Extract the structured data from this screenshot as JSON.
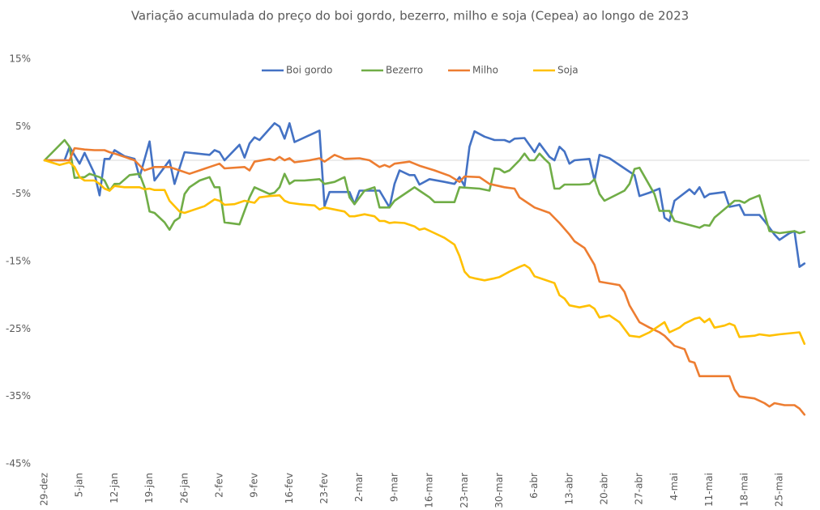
{
  "chart_data": {
    "type": "line",
    "title": "Variação acumulada do preço do boi gordo, bezerro, milho e soja (Cepea) ao longo de 2023",
    "xlim": [
      0,
      153
    ],
    "xticks": [
      {
        "value": 0,
        "label": "29-dez"
      },
      {
        "value": 7,
        "label": "5-jan"
      },
      {
        "value": 14,
        "label": "12-jan"
      },
      {
        "value": 21,
        "label": "19-jan"
      },
      {
        "value": 28,
        "label": "26-jan"
      },
      {
        "value": 35,
        "label": "2-fev"
      },
      {
        "value": 42,
        "label": "9-fev"
      },
      {
        "value": 49,
        "label": "16-fev"
      },
      {
        "value": 56,
        "label": "23-fev"
      },
      {
        "value": 63,
        "label": "2-mar"
      },
      {
        "value": 70,
        "label": "9-mar"
      },
      {
        "value": 77,
        "label": "16-mar"
      },
      {
        "value": 84,
        "label": "23-mar"
      },
      {
        "value": 91,
        "label": "30-mar"
      },
      {
        "value": 98,
        "label": "6-abr"
      },
      {
        "value": 105,
        "label": "13-abr"
      },
      {
        "value": 112,
        "label": "20-abr"
      },
      {
        "value": 119,
        "label": "27-abr"
      },
      {
        "value": 126,
        "label": "4-mai"
      },
      {
        "value": 133,
        "label": "11-mai"
      },
      {
        "value": 140,
        "label": "18-mai"
      },
      {
        "value": 147,
        "label": "25-mai"
      }
    ],
    "ylim": [
      -45,
      15
    ],
    "yticks": [
      {
        "value": 15,
        "label": "15%"
      },
      {
        "value": 5,
        "label": "5%"
      },
      {
        "value": -5,
        "label": "-5%"
      },
      {
        "value": -15,
        "label": "-15%"
      },
      {
        "value": -25,
        "label": "-25%"
      },
      {
        "value": -35,
        "label": "-35%"
      },
      {
        "value": -45,
        "label": "-45%"
      }
    ],
    "legend": "top",
    "series": [
      {
        "name": "Boi gordo",
        "color": "#4472c4",
        "x": [
          0,
          4,
          5,
          7,
          8,
          10,
          11,
          12,
          13,
          14,
          16,
          18,
          19,
          21,
          22,
          24,
          25,
          26,
          28,
          33,
          34,
          35,
          36,
          39,
          40,
          41,
          42,
          43,
          46,
          47,
          48,
          49,
          50,
          55,
          56,
          57,
          61,
          62,
          63,
          67,
          69,
          70,
          71,
          73,
          74,
          75,
          77,
          80,
          82,
          83,
          84,
          85,
          86,
          88,
          90,
          92,
          93,
          94,
          96,
          98,
          99,
          101,
          102,
          103,
          104,
          105,
          106,
          109,
          110,
          111,
          113,
          116,
          118,
          119,
          121,
          123,
          124,
          125,
          126,
          129,
          130,
          131,
          132,
          133,
          136,
          137,
          139,
          140,
          143,
          144,
          146,
          147,
          149,
          150,
          151,
          152
        ],
        "values": [
          0,
          0,
          2,
          -0.5,
          1.1,
          -2,
          -5.2,
          0.2,
          0.2,
          1.5,
          0.6,
          0.2,
          -2.5,
          2.8,
          -3,
          -1,
          0,
          -3.5,
          1.2,
          0.8,
          1.5,
          1.2,
          0,
          2.3,
          0.4,
          2.5,
          3.4,
          3,
          5.5,
          5,
          3.2,
          5.5,
          2.7,
          4.4,
          -6.8,
          -4.7,
          -4.7,
          -6.5,
          -4.5,
          -4.5,
          -7,
          -3.5,
          -1.5,
          -2.2,
          -2.2,
          -3.6,
          -2.8,
          -3.2,
          -3.5,
          -2.5,
          -3.8,
          2,
          4.3,
          3.5,
          3,
          3,
          2.7,
          3.2,
          3.3,
          1.2,
          2.5,
          0.5,
          0,
          2,
          1.3,
          -0.5,
          0,
          0.2,
          -3,
          0.8,
          0.3,
          -1.2,
          -2.2,
          -5.3,
          -4.8,
          -4.2,
          -8.5,
          -9,
          -6,
          -4.3,
          -5,
          -4,
          -5.5,
          -5,
          -4.7,
          -6.9,
          -6.6,
          -8.1,
          -8.1,
          -9,
          -11,
          -11.8,
          -10.8,
          -10.5,
          -15.8,
          -15.3
        ]
      },
      {
        "name": "Bezerro",
        "color": "#70ad47",
        "x": [
          0,
          4,
          5,
          6,
          8,
          9,
          11,
          12,
          13,
          14,
          15,
          17,
          19,
          20,
          21,
          22,
          24,
          25,
          26,
          27,
          28,
          29,
          31,
          33,
          34,
          35,
          36,
          39,
          41,
          42,
          45,
          46,
          47,
          48,
          49,
          50,
          52,
          55,
          56,
          58,
          60,
          61,
          62,
          64,
          66,
          67,
          69,
          70,
          73,
          74,
          75,
          77,
          78,
          82,
          83,
          87,
          89,
          90,
          91,
          92,
          93,
          95,
          96,
          97,
          98,
          99,
          100,
          101,
          102,
          103,
          104,
          107,
          109,
          110,
          111,
          112,
          116,
          117,
          118,
          119,
          122,
          123,
          125,
          126,
          131,
          132,
          133,
          134,
          138,
          139,
          140,
          141,
          143,
          145,
          147,
          150,
          151,
          152
        ],
        "values": [
          0,
          3,
          2,
          -2.6,
          -2.5,
          -2,
          -2.5,
          -3,
          -4.5,
          -3.5,
          -3.5,
          -2.2,
          -2,
          -4,
          -7.6,
          -7.8,
          -9.2,
          -10.3,
          -9,
          -8.5,
          -5,
          -4,
          -3,
          -2.5,
          -4,
          -4,
          -9.2,
          -9.5,
          -5.5,
          -4,
          -5,
          -4.8,
          -4,
          -2,
          -3.5,
          -3,
          -3,
          -2.8,
          -3.5,
          -3.2,
          -2.5,
          -5.5,
          -6.5,
          -4.5,
          -4,
          -7,
          -7,
          -6,
          -4.5,
          -4,
          -4.5,
          -5.5,
          -6.2,
          -6.2,
          -4,
          -4.2,
          -4.5,
          -1.2,
          -1.3,
          -1.8,
          -1.5,
          0,
          1,
          0,
          0,
          1,
          0.2,
          -0.5,
          -4.2,
          -4.2,
          -3.6,
          -3.6,
          -3.5,
          -2.8,
          -5,
          -6,
          -4.5,
          -3.5,
          -1.3,
          -1.1,
          -5,
          -7.5,
          -7.5,
          -9,
          -10,
          -9.6,
          -9.7,
          -8.5,
          -6,
          -6,
          -6.3,
          -5.8,
          -5.2,
          -10.5,
          -10.8,
          -10.5,
          -10.8,
          -10.6
        ]
      },
      {
        "name": "Milho",
        "color": "#ed7d31",
        "x": [
          0,
          5,
          6,
          8,
          10,
          12,
          13,
          14,
          16,
          18,
          20,
          22,
          25,
          27,
          29,
          31,
          33,
          35,
          36,
          40,
          41,
          42,
          45,
          46,
          47,
          48,
          49,
          50,
          53,
          55,
          56,
          58,
          60,
          63,
          65,
          67,
          68,
          69,
          70,
          73,
          75,
          78,
          81,
          83,
          84,
          87,
          89,
          92,
          94,
          95,
          96,
          98,
          101,
          103,
          105,
          106,
          108,
          110,
          111,
          115,
          116,
          117,
          119,
          121,
          123,
          124,
          126,
          128,
          129,
          130,
          131,
          133,
          137,
          138,
          139,
          142,
          144,
          145,
          146,
          148,
          150,
          151,
          152
        ],
        "values": [
          0,
          0,
          1.8,
          1.6,
          1.5,
          1.5,
          1.2,
          1,
          0.5,
          0,
          -1.5,
          -1,
          -1,
          -1.5,
          -2,
          -1.5,
          -1,
          -0.5,
          -1.2,
          -1,
          -1.5,
          -0.2,
          0.2,
          0,
          0.5,
          0,
          0.3,
          -0.3,
          0,
          0.3,
          -0.2,
          0.8,
          0.2,
          0.3,
          0,
          -1,
          -0.7,
          -1,
          -0.5,
          -0.2,
          -0.8,
          -1.5,
          -2.3,
          -3.2,
          -2.4,
          -2.5,
          -3.5,
          -4,
          -4.2,
          -5.5,
          -6,
          -7,
          -7.8,
          -9.3,
          -11,
          -12,
          -13,
          -15.5,
          -18,
          -18.5,
          -19.5,
          -21.5,
          -24,
          -24.8,
          -25.5,
          -26,
          -27.5,
          -28,
          -29.8,
          -30,
          -32,
          -32,
          -32,
          -34,
          -35,
          -35.3,
          -36,
          -36.5,
          -36,
          -36.3,
          -36.3,
          -36.8,
          -37.7
        ]
      },
      {
        "name": "Soja",
        "color": "#ffc000",
        "x": [
          0,
          3,
          5,
          6,
          7,
          8,
          10,
          11,
          12,
          13,
          14,
          16,
          19,
          20,
          21,
          22,
          24,
          25,
          27,
          28,
          30,
          32,
          33,
          34,
          35,
          36,
          38,
          40,
          42,
          43,
          45,
          47,
          48,
          49,
          51,
          54,
          55,
          56,
          58,
          60,
          61,
          62,
          64,
          66,
          67,
          68,
          69,
          70,
          72,
          74,
          75,
          76,
          78,
          80,
          82,
          83,
          84,
          85,
          86,
          88,
          90,
          91,
          93,
          95,
          96,
          97,
          98,
          100,
          102,
          103,
          104,
          105,
          107,
          109,
          110,
          111,
          113,
          115,
          117,
          119,
          121,
          123,
          124,
          125,
          127,
          128,
          130,
          131,
          132,
          133,
          134,
          136,
          137,
          138,
          139,
          142,
          143,
          145,
          147,
          151,
          152
        ],
        "values": [
          0,
          -0.7,
          -0.3,
          -1,
          -2.5,
          -3,
          -3,
          -3.5,
          -4.2,
          -4.5,
          -3.8,
          -4,
          -4,
          -4.3,
          -4.2,
          -4.4,
          -4.4,
          -6,
          -7.6,
          -7.8,
          -7.3,
          -6.8,
          -6.3,
          -5.8,
          -6,
          -6.6,
          -6.5,
          -6,
          -6.3,
          -5.5,
          -5.3,
          -5.2,
          -6,
          -6.3,
          -6.5,
          -6.7,
          -7.3,
          -7,
          -7.3,
          -7.6,
          -8.3,
          -8.3,
          -8,
          -8.3,
          -9,
          -9,
          -9.3,
          -9.2,
          -9.3,
          -9.8,
          -10.3,
          -10.1,
          -10.8,
          -11.5,
          -12.5,
          -14.2,
          -16.5,
          -17.3,
          -17.5,
          -17.8,
          -17.5,
          -17.3,
          -16.5,
          -15.8,
          -15.5,
          -16,
          -17.2,
          -17.7,
          -18.2,
          -20,
          -20.5,
          -21.5,
          -21.8,
          -21.5,
          -22,
          -23.3,
          -23,
          -24,
          -26,
          -26.2,
          -25.5,
          -24.5,
          -24,
          -25.5,
          -24.8,
          -24.2,
          -23.5,
          -23.3,
          -24,
          -23.5,
          -24.8,
          -24.5,
          -24.2,
          -24.5,
          -26.2,
          -26,
          -25.8,
          -26,
          -25.8,
          -25.5,
          -27.2
        ]
      }
    ]
  }
}
